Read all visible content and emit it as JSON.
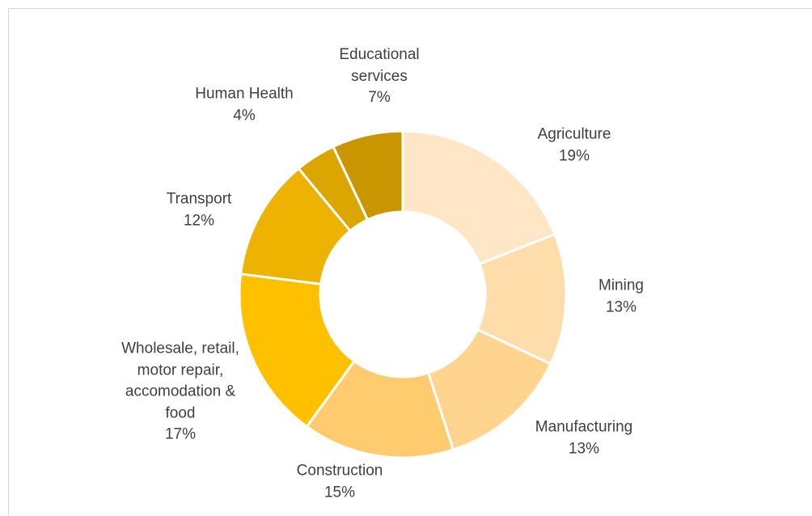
{
  "chart_data": {
    "type": "donut",
    "categories": [
      "Agriculture",
      "Mining",
      "Manufacturing",
      "Construction",
      "Wholesale, retail, motor repair, accomodation & food",
      "Transport",
      "Human Health",
      "Educational services"
    ],
    "values": [
      19,
      13,
      13,
      15,
      17,
      12,
      4,
      7
    ],
    "value_labels": [
      "19%",
      "13%",
      "13%",
      "15%",
      "17%",
      "12%",
      "4%",
      "7%"
    ],
    "colors": [
      "#FFE6C7",
      "#FFDDAB",
      "#FFD48F",
      "#FFCB6E",
      "#FFC000",
      "#EEB200",
      "#DCA600",
      "#C99500"
    ]
  }
}
